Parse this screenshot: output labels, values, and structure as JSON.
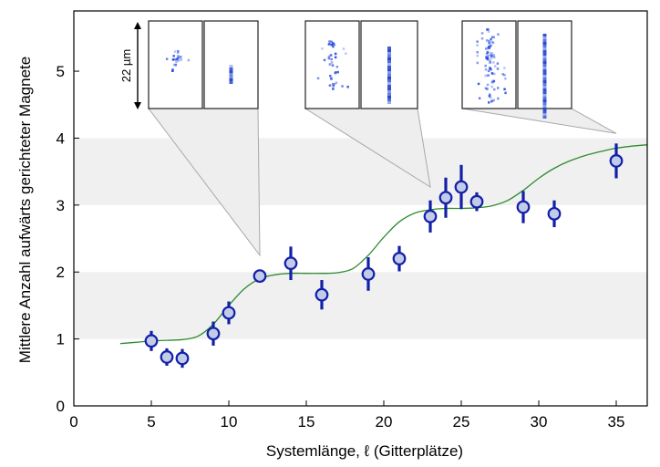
{
  "chart_data": {
    "type": "scatter",
    "xlabel": "Systemlänge, ℓ  (Gitterplätze)",
    "ylabel": "Mittlere Anzahl aufwärts gerichteter Magnete",
    "xlim": [
      0,
      37
    ],
    "ylim": [
      0,
      5.9
    ],
    "x_ticks": [
      "0",
      "5",
      "10",
      "15",
      "20",
      "25",
      "30",
      "35"
    ],
    "y_ticks": [
      "0",
      "1",
      "2",
      "3",
      "4",
      "5"
    ],
    "shaded_bands": [
      [
        1,
        2
      ],
      [
        3,
        4
      ]
    ],
    "grid": false,
    "points": [
      {
        "x": 5,
        "y": 0.97,
        "err": 0.15
      },
      {
        "x": 6,
        "y": 0.73,
        "err": 0.13
      },
      {
        "x": 7,
        "y": 0.71,
        "err": 0.14
      },
      {
        "x": 9,
        "y": 1.08,
        "err": 0.18
      },
      {
        "x": 10,
        "y": 1.39,
        "err": 0.17
      },
      {
        "x": 12,
        "y": 1.94,
        "err": 0.09
      },
      {
        "x": 14,
        "y": 2.13,
        "err": 0.25
      },
      {
        "x": 16,
        "y": 1.66,
        "err": 0.22
      },
      {
        "x": 19,
        "y": 1.97,
        "err": 0.25
      },
      {
        "x": 21,
        "y": 2.2,
        "err": 0.19
      },
      {
        "x": 23,
        "y": 2.83,
        "err": 0.24
      },
      {
        "x": 24,
        "y": 3.11,
        "err": 0.3
      },
      {
        "x": 25,
        "y": 3.27,
        "err": 0.33
      },
      {
        "x": 26,
        "y": 3.05,
        "err": 0.14
      },
      {
        "x": 29,
        "y": 2.97,
        "err": 0.24
      },
      {
        "x": 31,
        "y": 2.87,
        "err": 0.2
      },
      {
        "x": 35,
        "y": 3.66,
        "err": 0.26
      }
    ],
    "fit_curve": {
      "color": "#2e8b2e",
      "x": [
        3,
        4,
        5,
        6,
        7,
        8,
        9,
        10,
        11,
        12,
        13,
        14,
        15,
        16,
        17,
        18,
        19,
        20,
        21,
        22,
        23,
        24,
        25,
        26,
        27,
        28,
        29,
        30,
        31,
        32,
        33,
        34,
        35,
        36,
        37
      ],
      "y": [
        0.93,
        0.95,
        0.97,
        0.98,
        0.99,
        1.04,
        1.22,
        1.5,
        1.75,
        1.9,
        1.96,
        1.98,
        1.98,
        1.98,
        1.99,
        2.05,
        2.25,
        2.52,
        2.75,
        2.88,
        2.93,
        2.95,
        2.95,
        2.96,
        2.99,
        3.07,
        3.22,
        3.4,
        3.55,
        3.66,
        3.74,
        3.8,
        3.85,
        3.88,
        3.9
      ]
    },
    "marker": {
      "fill": "#c2cbe8",
      "stroke": "#1220a8"
    },
    "band_color": "#f0f0f0"
  },
  "insets": {
    "scale_label": "22 µm",
    "groups": [
      {
        "x": 12,
        "y": 2.25
      },
      {
        "x": 23,
        "y": 3.27
      },
      {
        "x": 35,
        "y": 4.07
      }
    ]
  }
}
